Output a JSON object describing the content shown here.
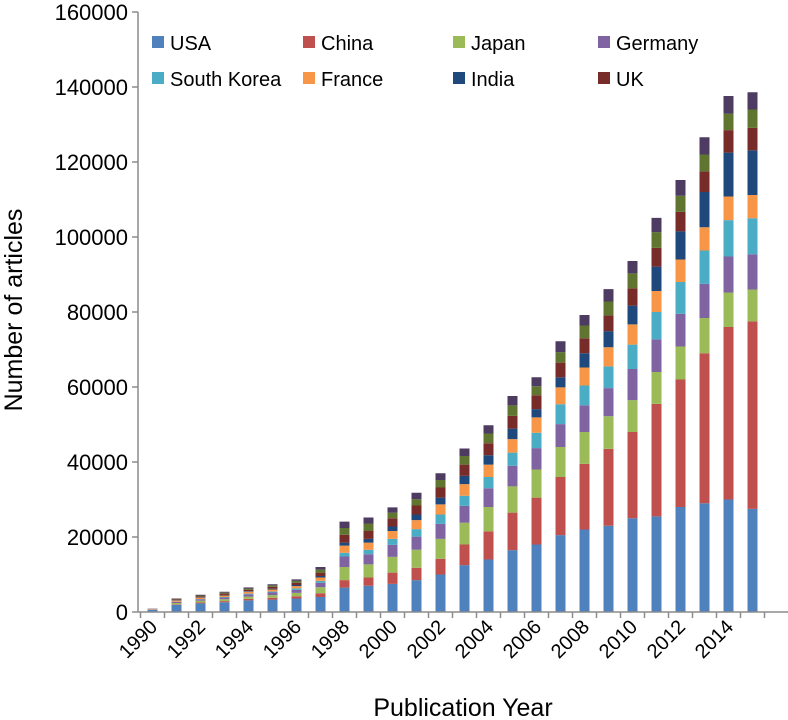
{
  "chart_data": {
    "type": "bar",
    "stacked": true,
    "xlabel": "Publication Year",
    "ylabel": "Number of articles",
    "ylim": [
      0,
      160000
    ],
    "yticks": [
      0,
      20000,
      40000,
      60000,
      80000,
      100000,
      120000,
      140000,
      160000
    ],
    "xtick_labels": [
      "1990",
      "1992",
      "1994",
      "1996",
      "1998",
      "2000",
      "2002",
      "2004",
      "2006",
      "2008",
      "2010",
      "2012",
      "2014"
    ],
    "categories": [
      "1990",
      "1991",
      "1992",
      "1993",
      "1994",
      "1995",
      "1996",
      "1997",
      "1998",
      "1999",
      "2000",
      "2001",
      "2002",
      "2003",
      "2004",
      "2005",
      "2006",
      "2007",
      "2008",
      "2009",
      "2010",
      "2011",
      "2012",
      "2013",
      "2014",
      "2015"
    ],
    "legend_position": "top",
    "grid": false,
    "series": [
      {
        "name": "USA",
        "color": "#4F81BD",
        "values": [
          600,
          1900,
          2300,
          2600,
          3100,
          3300,
          3600,
          4000,
          6500,
          7000,
          7500,
          8500,
          10000,
          12500,
          14000,
          16500,
          18000,
          20500,
          22000,
          23000,
          25000,
          25500,
          28000,
          29000,
          30000,
          27500
        ]
      },
      {
        "name": "China",
        "color": "#C0504D",
        "values": [
          50,
          150,
          250,
          300,
          400,
          500,
          600,
          1000,
          2000,
          2200,
          3000,
          3300,
          4200,
          5500,
          7500,
          10000,
          12500,
          15500,
          17500,
          20500,
          23000,
          30000,
          34000,
          40000,
          46000,
          50000
        ]
      },
      {
        "name": "Japan",
        "color": "#9BBB59",
        "values": [
          50,
          350,
          450,
          500,
          600,
          700,
          900,
          1600,
          3500,
          3500,
          4200,
          4800,
          5300,
          5800,
          6500,
          7000,
          7500,
          8000,
          8500,
          8700,
          8500,
          8500,
          8800,
          9400,
          9200,
          8500
        ]
      },
      {
        "name": "Germany",
        "color": "#8064A2",
        "values": [
          50,
          300,
          350,
          450,
          600,
          700,
          800,
          1200,
          2800,
          2700,
          3200,
          3500,
          4000,
          4500,
          5000,
          5500,
          5700,
          6100,
          7100,
          7500,
          8300,
          8700,
          8700,
          9100,
          9600,
          9400
        ]
      },
      {
        "name": "South Korea",
        "color": "#4BACC6",
        "values": [
          0,
          50,
          100,
          150,
          200,
          250,
          400,
          500,
          1000,
          1200,
          1600,
          2000,
          2500,
          2700,
          3000,
          3500,
          4100,
          5300,
          5300,
          5800,
          6500,
          7300,
          8500,
          8900,
          9700,
          9600
        ]
      },
      {
        "name": "France",
        "color": "#F79646",
        "values": [
          50,
          300,
          350,
          400,
          500,
          550,
          600,
          900,
          1900,
          1900,
          2100,
          2400,
          2700,
          3100,
          3300,
          3600,
          4100,
          4500,
          4800,
          5100,
          5400,
          5600,
          6000,
          6200,
          6300,
          6200
        ]
      },
      {
        "name": "India",
        "color": "#1F497D",
        "values": [
          0,
          100,
          100,
          150,
          150,
          200,
          300,
          400,
          800,
          1000,
          1200,
          1500,
          1800,
          2200,
          2500,
          2800,
          2200,
          2700,
          3800,
          4300,
          5000,
          6500,
          7500,
          9400,
          11700,
          11900
        ]
      },
      {
        "name": "UK",
        "color": "#772C2A",
        "values": [
          50,
          200,
          300,
          350,
          400,
          500,
          600,
          900,
          2100,
          2100,
          2200,
          2400,
          2700,
          3000,
          3200,
          3400,
          3700,
          3900,
          4000,
          4200,
          4600,
          5000,
          5200,
          5500,
          6000,
          6000
        ]
      },
      {
        "name": "",
        "color": "#5F7530",
        "values": [
          0,
          100,
          200,
          250,
          300,
          400,
          500,
          800,
          1800,
          2000,
          1500,
          1700,
          2000,
          2300,
          2600,
          2800,
          2400,
          2800,
          3400,
          3700,
          4000,
          4200,
          4300,
          4500,
          4400,
          4900
        ]
      },
      {
        "name": "",
        "color": "#4D3B62",
        "values": [
          50,
          150,
          200,
          250,
          300,
          300,
          400,
          700,
          1700,
          1600,
          1400,
          1700,
          1800,
          2000,
          2200,
          2500,
          2400,
          2900,
          2800,
          3300,
          3300,
          3800,
          4200,
          4600,
          4700,
          4600
        ]
      }
    ]
  }
}
